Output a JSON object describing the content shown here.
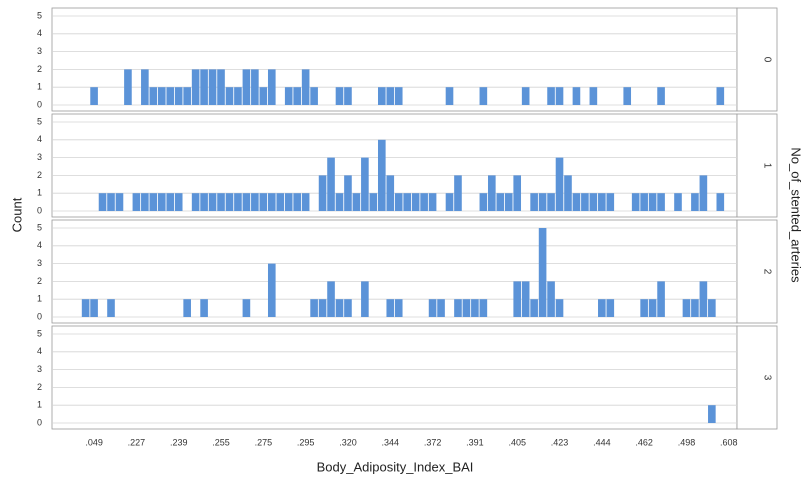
{
  "chart_data": {
    "type": "bar",
    "x_label": "Body_Adiposity_Index_BAI",
    "y_label": "Count",
    "facet_label": "No_of_stented_arteries",
    "color": "#5b93d8",
    "ylim": [
      0,
      5
    ],
    "yticks": [
      0,
      1,
      2,
      3,
      4,
      5
    ],
    "grid": true,
    "categories": [
      null,
      null,
      null,
      null,
      ".049",
      null,
      null,
      null,
      null,
      ".227",
      null,
      null,
      null,
      null,
      ".239",
      null,
      null,
      null,
      null,
      ".255",
      null,
      null,
      null,
      null,
      ".275",
      null,
      null,
      null,
      null,
      ".295",
      null,
      null,
      null,
      null,
      ".320",
      null,
      null,
      null,
      null,
      ".344",
      null,
      null,
      null,
      null,
      ".372",
      null,
      null,
      null,
      null,
      ".391",
      null,
      null,
      null,
      null,
      ".405",
      null,
      null,
      null,
      null,
      ".423",
      null,
      null,
      null,
      null,
      ".444",
      null,
      null,
      null,
      null,
      ".462",
      null,
      null,
      null,
      null,
      ".498",
      null,
      null,
      null,
      null,
      ".608"
    ],
    "panels": [
      {
        "name": "0",
        "values": [
          0,
          0,
          0,
          0,
          1,
          0,
          0,
          0,
          2,
          0,
          2,
          1,
          1,
          1,
          1,
          1,
          2,
          2,
          2,
          2,
          1,
          1,
          2,
          2,
          1,
          2,
          0,
          1,
          1,
          2,
          1,
          0,
          0,
          1,
          1,
          0,
          0,
          0,
          1,
          1,
          1,
          0,
          0,
          0,
          0,
          0,
          1,
          0,
          0,
          0,
          1,
          0,
          0,
          0,
          0,
          1,
          0,
          0,
          1,
          1,
          0,
          1,
          0,
          1,
          0,
          0,
          0,
          1,
          0,
          0,
          0,
          1,
          0,
          0,
          0,
          0,
          0,
          0,
          1,
          0
        ]
      },
      {
        "name": "1",
        "values": [
          0,
          0,
          0,
          0,
          0,
          1,
          1,
          1,
          0,
          1,
          1,
          1,
          1,
          1,
          1,
          0,
          1,
          1,
          1,
          1,
          1,
          1,
          1,
          1,
          1,
          1,
          1,
          1,
          1,
          1,
          0,
          2,
          3,
          1,
          2,
          1,
          3,
          1,
          4,
          2,
          1,
          1,
          1,
          1,
          1,
          0,
          1,
          2,
          0,
          0,
          1,
          2,
          1,
          1,
          2,
          0,
          1,
          1,
          1,
          3,
          2,
          1,
          1,
          1,
          1,
          1,
          0,
          0,
          1,
          1,
          1,
          1,
          0,
          1,
          0,
          1,
          2,
          0,
          1,
          0
        ]
      },
      {
        "name": "2",
        "values": [
          0,
          0,
          0,
          1,
          1,
          0,
          1,
          0,
          0,
          0,
          0,
          0,
          0,
          0,
          0,
          1,
          0,
          1,
          0,
          0,
          0,
          0,
          1,
          0,
          0,
          3,
          0,
          0,
          0,
          0,
          1,
          1,
          2,
          1,
          1,
          0,
          2,
          0,
          0,
          1,
          1,
          0,
          0,
          0,
          1,
          1,
          0,
          1,
          1,
          1,
          1,
          0,
          0,
          0,
          2,
          2,
          1,
          5,
          2,
          1,
          0,
          0,
          0,
          0,
          1,
          1,
          0,
          0,
          0,
          1,
          1,
          2,
          0,
          0,
          1,
          1,
          2,
          1,
          0,
          0
        ]
      },
      {
        "name": "3",
        "values": [
          0,
          0,
          0,
          0,
          0,
          0,
          0,
          0,
          0,
          0,
          0,
          0,
          0,
          0,
          0,
          0,
          0,
          0,
          0,
          0,
          0,
          0,
          0,
          0,
          0,
          0,
          0,
          0,
          0,
          0,
          0,
          0,
          0,
          0,
          0,
          0,
          0,
          0,
          0,
          0,
          0,
          0,
          0,
          0,
          0,
          0,
          0,
          0,
          0,
          0,
          0,
          0,
          0,
          0,
          0,
          0,
          0,
          0,
          0,
          0,
          0,
          0,
          0,
          0,
          0,
          0,
          0,
          0,
          0,
          0,
          0,
          0,
          0,
          0,
          0,
          0,
          0,
          1,
          0,
          0
        ]
      }
    ]
  }
}
